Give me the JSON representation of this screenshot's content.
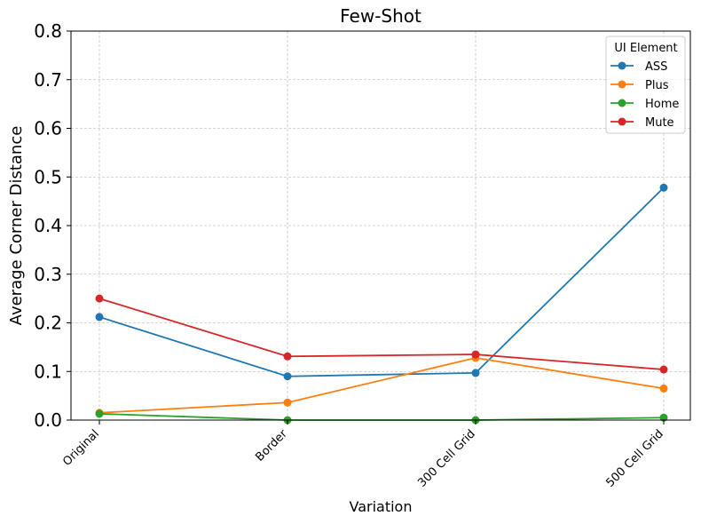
{
  "chart_data": {
    "type": "line",
    "title": "Few-Shot",
    "xlabel": "Variation",
    "ylabel": "Average Corner Distance",
    "categories": [
      "Original",
      "Border",
      "300 Cell Grid",
      "500 Cell Grid"
    ],
    "ylim": [
      0,
      0.8
    ],
    "yticks": [
      "0.0",
      "0.1",
      "0.2",
      "0.3",
      "0.4",
      "0.5",
      "0.6",
      "0.7",
      "0.8"
    ],
    "grid": true,
    "legend": {
      "title": "UI Element",
      "position": "top-right"
    },
    "series": [
      {
        "name": "ASS",
        "color": "#1f77b4",
        "values": [
          0.212,
          0.09,
          0.097,
          0.478
        ]
      },
      {
        "name": "Plus",
        "color": "#ff7f0e",
        "values": [
          0.015,
          0.036,
          0.128,
          0.065
        ]
      },
      {
        "name": "Home",
        "color": "#2ca02c",
        "values": [
          0.013,
          0.0,
          0.0,
          0.005
        ]
      },
      {
        "name": "Mute",
        "color": "#d62728",
        "values": [
          0.25,
          0.131,
          0.135,
          0.104
        ]
      }
    ]
  }
}
